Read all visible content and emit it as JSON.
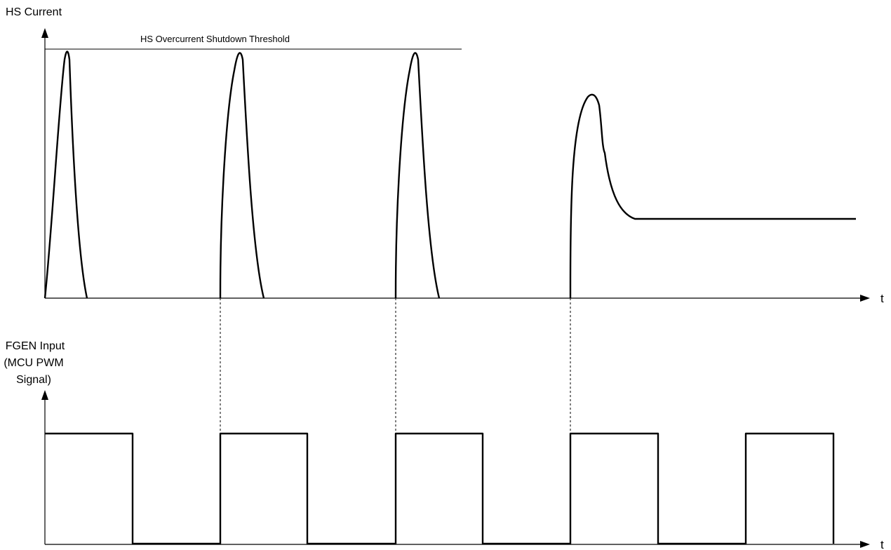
{
  "top_plot": {
    "y_label": "HS Current",
    "x_label": "t",
    "threshold_label": "HS Overcurrent Shutdown Threshold"
  },
  "bottom_plot": {
    "y_label_lines": [
      "FGEN Input",
      "(MCU PWM",
      "Signal)"
    ],
    "x_label": "t"
  }
}
